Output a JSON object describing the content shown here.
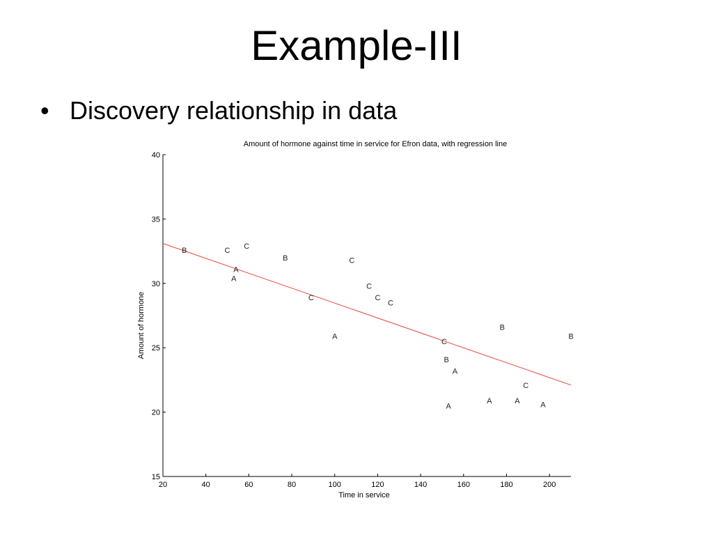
{
  "slide": {
    "title": "Example-III",
    "bullets": [
      {
        "marker": "•",
        "text": "Discovery relationship in data"
      }
    ]
  },
  "chart_data": {
    "type": "scatter",
    "title": "Amount of hormone against time in service for Efron data, with regression line",
    "xlabel": "Time in service",
    "ylabel": "Amount of hormone",
    "xlim": [
      20,
      210
    ],
    "ylim": [
      15,
      40
    ],
    "xticks": [
      20,
      40,
      60,
      80,
      100,
      120,
      140,
      160,
      180,
      200
    ],
    "yticks": [
      15,
      20,
      25,
      30,
      35,
      40
    ],
    "grid": false,
    "legend": "none",
    "marker_style": "letter",
    "points": [
      {
        "x": 30,
        "y": 32.6,
        "label": "B"
      },
      {
        "x": 50,
        "y": 32.6,
        "label": "C"
      },
      {
        "x": 59,
        "y": 32.9,
        "label": "C"
      },
      {
        "x": 54,
        "y": 31.1,
        "label": "A"
      },
      {
        "x": 53,
        "y": 30.4,
        "label": "A"
      },
      {
        "x": 77,
        "y": 32.0,
        "label": "B"
      },
      {
        "x": 108,
        "y": 31.8,
        "label": "C"
      },
      {
        "x": 89,
        "y": 28.9,
        "label": "C"
      },
      {
        "x": 116,
        "y": 29.8,
        "label": "C"
      },
      {
        "x": 120,
        "y": 28.9,
        "label": "C"
      },
      {
        "x": 126,
        "y": 28.5,
        "label": "C"
      },
      {
        "x": 100,
        "y": 25.9,
        "label": "A"
      },
      {
        "x": 151,
        "y": 25.5,
        "label": "C"
      },
      {
        "x": 178,
        "y": 26.6,
        "label": "B"
      },
      {
        "x": 210,
        "y": 25.9,
        "label": "B"
      },
      {
        "x": 152,
        "y": 24.1,
        "label": "B"
      },
      {
        "x": 156,
        "y": 23.2,
        "label": "A"
      },
      {
        "x": 189,
        "y": 22.1,
        "label": "C"
      },
      {
        "x": 153,
        "y": 20.5,
        "label": "A"
      },
      {
        "x": 172,
        "y": 20.9,
        "label": "A"
      },
      {
        "x": 185,
        "y": 20.9,
        "label": "A"
      },
      {
        "x": 197,
        "y": 20.6,
        "label": "A"
      }
    ],
    "regression_line": {
      "x": [
        20,
        210
      ],
      "y": [
        33.1,
        22.1
      ]
    },
    "colors": {
      "axis": "#000000",
      "points": "#222222",
      "regression_line": "#e8463a"
    }
  }
}
